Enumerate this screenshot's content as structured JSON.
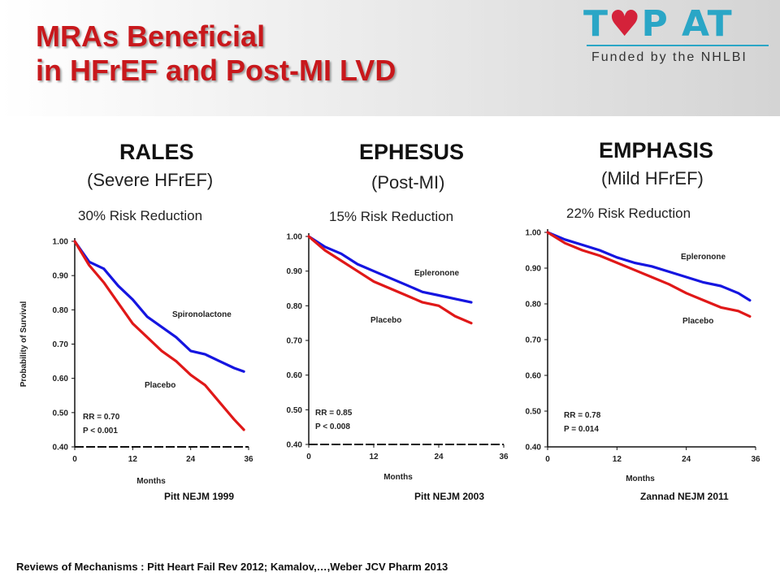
{
  "header": {
    "title_line1": "MRAs Beneficial",
    "title_line2": "in HFrEF and Post-MI LVD",
    "logo_text_pre": "T",
    "logo_text_post": "P AT",
    "logo_subtitle": "Funded by the NHLBI"
  },
  "colors": {
    "title": "#c8181c",
    "treatment": "#1515e0",
    "placebo": "#e01818",
    "logo": "#2aa6c6"
  },
  "panels": [
    {
      "trial": "RALES",
      "population": "(Severe HFrEF)",
      "risk_reduction": "30% Risk Reduction",
      "citation": "Pitt NEJM 1999"
    },
    {
      "trial": "EPHESUS",
      "population": "(Post-MI)",
      "risk_reduction": "15% Risk Reduction",
      "citation": "Pitt NEJM 2003"
    },
    {
      "trial": "EMPHASIS",
      "population": "(Mild HFrEF)",
      "risk_reduction": "22% Risk Reduction",
      "citation": "Zannad NEJM 2011"
    }
  ],
  "footer": "Reviews of Mechanisms : Pitt  Heart Fail Rev 2012;   Kamalov,…,Weber  JCV Pharm 2013",
  "chart_data": [
    {
      "type": "line",
      "xlabel": "Months",
      "ylabel": "Probability of Survival",
      "xlim": [
        0,
        36
      ],
      "ylim": [
        0.4,
        1.0
      ],
      "xticks": [
        "0",
        "12",
        "24",
        "36"
      ],
      "yticks": [
        "0.40",
        "0.50",
        "0.60",
        "0.70",
        "0.80",
        "0.90",
        "1.00"
      ],
      "annotations": [
        "RR = 0.70",
        "P < 0.001"
      ],
      "series": [
        {
          "name": "Spironolactone",
          "role": "treatment",
          "x": [
            0,
            3,
            6,
            9,
            12,
            15,
            18,
            21,
            24,
            27,
            30,
            33,
            35
          ],
          "y": [
            1.0,
            0.94,
            0.92,
            0.87,
            0.83,
            0.78,
            0.75,
            0.72,
            0.68,
            0.67,
            0.65,
            0.63,
            0.62
          ]
        },
        {
          "name": "Placebo",
          "role": "placebo",
          "x": [
            0,
            3,
            6,
            9,
            12,
            15,
            18,
            21,
            24,
            27,
            30,
            33,
            35
          ],
          "y": [
            1.0,
            0.93,
            0.88,
            0.82,
            0.76,
            0.72,
            0.68,
            0.65,
            0.61,
            0.58,
            0.53,
            0.48,
            0.45
          ]
        }
      ]
    },
    {
      "type": "line",
      "xlabel": "Months",
      "ylabel": "",
      "xlim": [
        0,
        36
      ],
      "ylim": [
        0.4,
        1.0
      ],
      "xticks": [
        "0",
        "12",
        "24",
        "36"
      ],
      "yticks": [
        "0.40",
        "0.50",
        "0.60",
        "0.70",
        "0.80",
        "0.90",
        "1.00"
      ],
      "annotations": [
        "RR = 0.85",
        "P < 0.008"
      ],
      "series": [
        {
          "name": "Epleronone",
          "role": "treatment",
          "x": [
            0,
            3,
            6,
            9,
            12,
            15,
            18,
            21,
            24,
            27,
            30
          ],
          "y": [
            1.0,
            0.97,
            0.95,
            0.92,
            0.9,
            0.88,
            0.86,
            0.84,
            0.83,
            0.82,
            0.81
          ]
        },
        {
          "name": "Placebo",
          "role": "placebo",
          "x": [
            0,
            3,
            6,
            9,
            12,
            15,
            18,
            21,
            24,
            27,
            30
          ],
          "y": [
            1.0,
            0.96,
            0.93,
            0.9,
            0.87,
            0.85,
            0.83,
            0.81,
            0.8,
            0.77,
            0.75
          ]
        }
      ]
    },
    {
      "type": "line",
      "xlabel": "Months",
      "ylabel": "",
      "xlim": [
        0,
        36
      ],
      "ylim": [
        0.4,
        1.0
      ],
      "xticks": [
        "0",
        "12",
        "24",
        "36"
      ],
      "yticks": [
        "0.40",
        "0.50",
        "0.60",
        "0.70",
        "0.80",
        "0.90",
        "1.00"
      ],
      "annotations": [
        "RR = 0.78",
        "P = 0.014"
      ],
      "series": [
        {
          "name": "Epleronone",
          "role": "treatment",
          "x": [
            0,
            3,
            6,
            9,
            12,
            15,
            18,
            21,
            24,
            27,
            30,
            33,
            35
          ],
          "y": [
            1.0,
            0.98,
            0.965,
            0.95,
            0.93,
            0.915,
            0.905,
            0.89,
            0.875,
            0.86,
            0.85,
            0.83,
            0.81
          ]
        },
        {
          "name": "Placebo",
          "role": "placebo",
          "x": [
            0,
            3,
            6,
            9,
            12,
            15,
            18,
            21,
            24,
            27,
            30,
            33,
            35
          ],
          "y": [
            1.0,
            0.97,
            0.95,
            0.935,
            0.915,
            0.895,
            0.875,
            0.855,
            0.83,
            0.81,
            0.79,
            0.78,
            0.765
          ]
        }
      ]
    }
  ]
}
